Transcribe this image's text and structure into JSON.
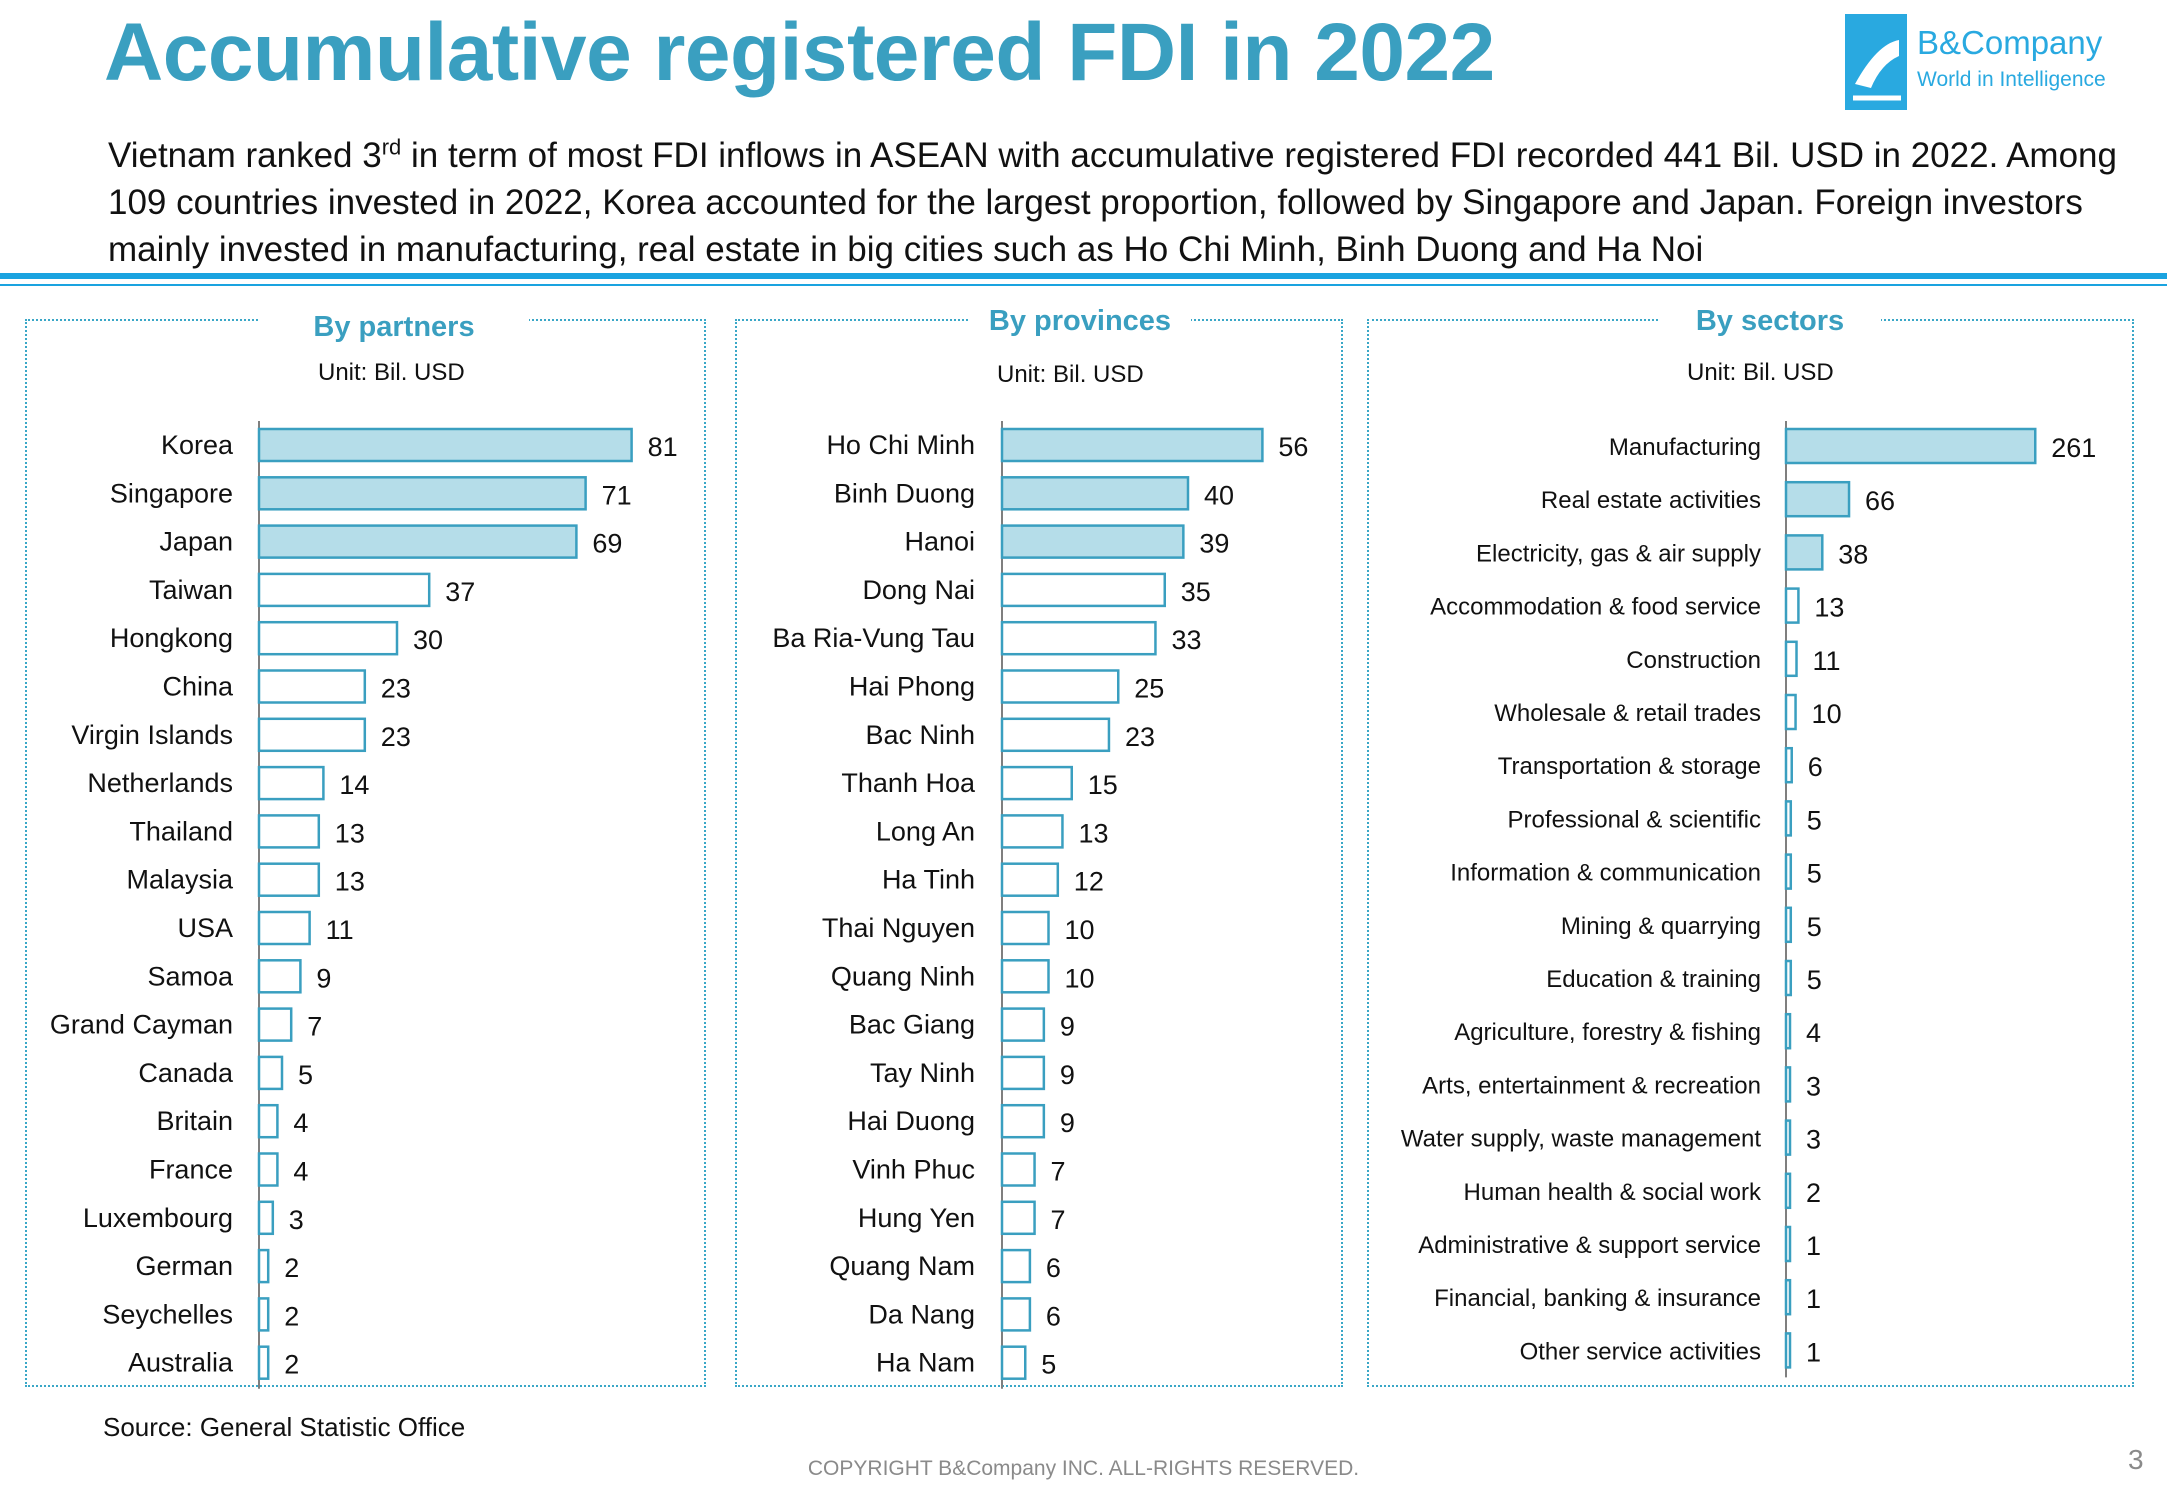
{
  "header": {
    "title": "Accumulative registered FDI in 2022",
    "summary_part1": "Vietnam ranked 3",
    "summary_sup": "rd",
    "summary_part2": " in term of most FDI inflows in ASEAN with accumulative registered FDI recorded 441 Bil. USD in 2022. Among 109 countries invested in 2022, Korea accounted for the largest proportion, followed by Singapore and Japan. Foreign investors mainly invested in manufacturing, real estate in big cities such as Ho Chi Minh, Binh Duong and Ha Noi"
  },
  "logo": {
    "name": "B&Company",
    "tagline": "World in Intelligence",
    "icon": "b-company-logo-icon"
  },
  "colors": {
    "accent": "#3a9fc0",
    "bar_highlight": "#b5dde9",
    "bar_border": "#3a9fc0",
    "rule": "#1aa3e0"
  },
  "chart_data": [
    {
      "type": "bar",
      "orientation": "horizontal",
      "title": "By partners",
      "unit": "Unit: Bil. USD",
      "highlight_count": 3,
      "categories": [
        "Korea",
        "Singapore",
        "Japan",
        "Taiwan",
        "Hongkong",
        "China",
        "Virgin Islands",
        "Netherlands",
        "Thailand",
        "Malaysia",
        "USA",
        "Samoa",
        "Grand Cayman",
        "Canada",
        "Britain",
        "France",
        "Luxembourg",
        "German",
        "Seychelles",
        "Australia"
      ],
      "values": [
        81,
        71,
        69,
        37,
        30,
        23,
        23,
        14,
        13,
        13,
        11,
        9,
        7,
        5,
        4,
        4,
        3,
        2,
        2,
        2
      ]
    },
    {
      "type": "bar",
      "orientation": "horizontal",
      "title": "By provinces",
      "unit": "Unit: Bil. USD",
      "highlight_count": 3,
      "categories": [
        "Ho Chi Minh",
        "Binh Duong",
        "Hanoi",
        "Dong Nai",
        "Ba Ria-Vung Tau",
        "Hai Phong",
        "Bac Ninh",
        "Thanh Hoa",
        "Long An",
        "Ha Tinh",
        "Thai Nguyen",
        "Quang Ninh",
        "Bac Giang",
        "Tay Ninh",
        "Hai Duong",
        "Vinh Phuc",
        "Hung Yen",
        "Quang Nam",
        "Da Nang",
        "Ha Nam"
      ],
      "values": [
        56,
        40,
        39,
        35,
        33,
        25,
        23,
        15,
        13,
        12,
        10,
        10,
        9,
        9,
        9,
        7,
        7,
        6,
        6,
        5
      ]
    },
    {
      "type": "bar",
      "orientation": "horizontal",
      "title": "By sectors",
      "unit": "Unit: Bil. USD",
      "highlight_count": 3,
      "categories": [
        "Manufacturing",
        "Real estate activities",
        "Electricity, gas & air supply",
        "Accommodation & food service",
        "Construction",
        "Wholesale & retail trades",
        "Transportation & storage",
        "Professional & scientific",
        "Information & communication",
        "Mining & quarrying",
        "Education & training",
        "Agriculture, forestry & fishing",
        "Arts, entertainment & recreation",
        "Water supply, waste management",
        "Human health & social work",
        "Administrative & support service",
        "Financial, banking & insurance",
        "Other service activities"
      ],
      "values": [
        261,
        66,
        38,
        13,
        11,
        10,
        6,
        5,
        5,
        5,
        5,
        4,
        3,
        3,
        2,
        1,
        1,
        1
      ]
    }
  ],
  "footer": {
    "source": "Source: General Statistic Office",
    "copyright": "COPYRIGHT B&Company INC. ALL-RIGHTS RESERVED.",
    "page": "3"
  }
}
